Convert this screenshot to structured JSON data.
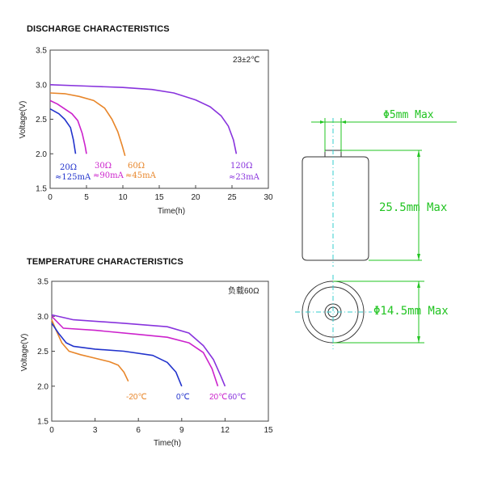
{
  "discharge": {
    "section_title": "DISCHARGE CHARACTERISTICS",
    "chart_data": {
      "type": "line",
      "xlabel": "Time(h)",
      "ylabel": "Voltage(V)",
      "xlim": [
        0,
        30
      ],
      "ylim": [
        1.5,
        3.5
      ],
      "xticks": [
        0,
        5,
        10,
        15,
        20,
        25,
        30
      ],
      "yticks": [
        1.5,
        2.0,
        2.5,
        3.0,
        3.5
      ],
      "annotation": "23±2℃",
      "series": [
        {
          "name": "20Ω ≈125mA",
          "color": "#2233cc",
          "x": [
            0,
            0.5,
            1.2,
            2.0,
            2.8,
            3.2,
            3.5
          ],
          "y": [
            2.65,
            2.62,
            2.58,
            2.5,
            2.38,
            2.2,
            2.0
          ]
        },
        {
          "name": "30Ω ≈90mA",
          "color": "#cc22cc",
          "x": [
            0,
            1,
            2,
            3,
            3.8,
            4.4,
            4.8,
            5.0
          ],
          "y": [
            2.77,
            2.72,
            2.65,
            2.58,
            2.48,
            2.3,
            2.12,
            2.0
          ]
        },
        {
          "name": "60Ω ≈45mA",
          "color": "#e8862a",
          "x": [
            0,
            2,
            4,
            6,
            7.5,
            8.5,
            9.3,
            9.9,
            10.3
          ],
          "y": [
            2.88,
            2.87,
            2.83,
            2.77,
            2.66,
            2.5,
            2.32,
            2.12,
            1.97
          ]
        },
        {
          "name": "120Ω ≈23mA",
          "color": "#8833dd",
          "x": [
            0,
            5,
            10,
            14,
            17,
            20,
            22,
            23.5,
            24.5,
            25.2,
            25.6
          ],
          "y": [
            3.0,
            2.98,
            2.96,
            2.93,
            2.88,
            2.78,
            2.68,
            2.55,
            2.4,
            2.2,
            2.0
          ]
        }
      ],
      "labels": [
        {
          "text1": "20Ω",
          "text2": "≈125mA",
          "color": "#2233cc"
        },
        {
          "text1": "30Ω",
          "text2": "≈90mA",
          "color": "#cc22cc"
        },
        {
          "text1": "60Ω",
          "text2": "≈45mA",
          "color": "#e8862a"
        },
        {
          "text1": "120Ω",
          "text2": "≈23mA",
          "color": "#8833dd"
        }
      ]
    }
  },
  "temperature": {
    "section_title": "TEMPERATURE CHARACTERISTICS",
    "chart_data": {
      "type": "line",
      "xlabel": "Time(h)",
      "ylabel": "Voltage(V)",
      "xlim": [
        0,
        15
      ],
      "ylim": [
        1.5,
        3.5
      ],
      "xticks": [
        0,
        3,
        6,
        9,
        12,
        15
      ],
      "yticks": [
        1.5,
        2.0,
        2.5,
        3.0,
        3.5
      ],
      "annotation": "负载60Ω",
      "series": [
        {
          "name": "-20℃",
          "color": "#e8862a",
          "x": [
            0,
            0.3,
            0.7,
            1.2,
            2,
            3,
            4,
            4.6,
            5.0,
            5.3
          ],
          "y": [
            2.95,
            2.8,
            2.62,
            2.5,
            2.45,
            2.4,
            2.35,
            2.3,
            2.2,
            2.07
          ]
        },
        {
          "name": "0℃",
          "color": "#2233cc",
          "x": [
            0,
            0.5,
            1.0,
            1.5,
            3,
            5,
            7,
            8,
            8.6,
            9.0
          ],
          "y": [
            2.9,
            2.75,
            2.62,
            2.57,
            2.53,
            2.5,
            2.44,
            2.34,
            2.2,
            2.0
          ]
        },
        {
          "name": "20℃",
          "color": "#cc22cc",
          "x": [
            0,
            0.8,
            3,
            6,
            8,
            9.5,
            10.5,
            11.1,
            11.5
          ],
          "y": [
            3.0,
            2.83,
            2.8,
            2.74,
            2.7,
            2.62,
            2.48,
            2.25,
            2.0
          ]
        },
        {
          "name": "60℃",
          "color": "#8833dd",
          "x": [
            0,
            1.5,
            5,
            8,
            9.5,
            10.5,
            11.2,
            11.7,
            12.0
          ],
          "y": [
            3.02,
            2.95,
            2.9,
            2.85,
            2.76,
            2.58,
            2.38,
            2.15,
            2.0
          ]
        }
      ],
      "labels": [
        {
          "text": "-20℃",
          "color": "#e8862a"
        },
        {
          "text": "0℃",
          "color": "#2233cc"
        },
        {
          "text": "20℃",
          "color": "#cc22cc"
        },
        {
          "text": "60℃",
          "color": "#8833dd"
        }
      ]
    }
  },
  "dimensions": {
    "pin_diameter": "Φ5mm Max",
    "height": "25.5mm Max",
    "body_diameter": "Φ14.5mm Max",
    "dimension_color": "#22c422",
    "centerline_color": "#33cccc"
  }
}
